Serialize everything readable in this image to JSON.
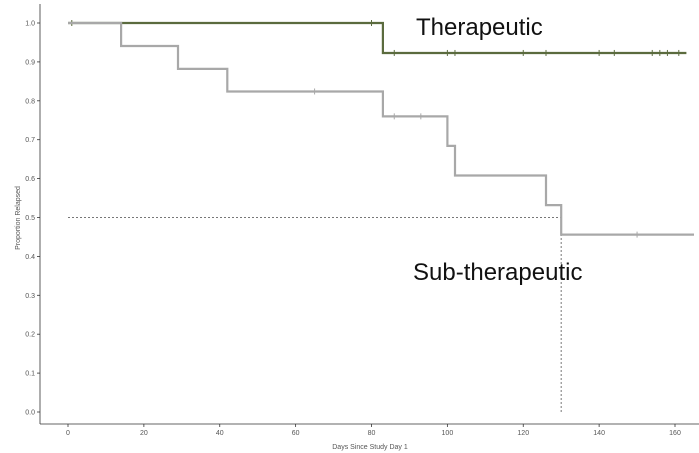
{
  "chart_data": {
    "type": "line",
    "subtype": "kaplan-meier step",
    "title": "",
    "xlabel": "Days Since Study Day 1",
    "ylabel": "Proportion Relapsed",
    "xlim": [
      -5,
      165
    ],
    "ylim": [
      -0.03,
      1.03
    ],
    "x_ticks": [
      0,
      20,
      40,
      60,
      80,
      100,
      120,
      140,
      160
    ],
    "y_ticks": [
      0.0,
      0.1,
      0.2,
      0.3,
      0.4,
      0.5,
      0.6,
      0.7,
      0.8,
      0.9,
      1.0
    ],
    "grid": false,
    "series": [
      {
        "name": "Therapeutic",
        "color": "#5b6b3e",
        "x": [
          0,
          83,
          83,
          163
        ],
        "y": [
          1.0,
          1.0,
          0.923,
          0.923
        ],
        "censor_x": [
          1,
          80,
          86,
          100,
          102,
          120,
          126,
          140,
          144,
          154,
          156,
          158,
          161
        ],
        "censor_y": [
          1.0,
          1.0,
          0.923,
          0.923,
          0.923,
          0.923,
          0.923,
          0.923,
          0.923,
          0.923,
          0.923,
          0.923,
          0.923
        ]
      },
      {
        "name": "Sub-therapeutic",
        "color": "#a8a8a8",
        "x": [
          0,
          14,
          14,
          29,
          29,
          42,
          42,
          83,
          83,
          100,
          100,
          102,
          102,
          126,
          126,
          130,
          130,
          165
        ],
        "y": [
          1.0,
          1.0,
          0.941,
          0.941,
          0.882,
          0.882,
          0.824,
          0.824,
          0.76,
          0.76,
          0.684,
          0.684,
          0.608,
          0.608,
          0.532,
          0.532,
          0.456,
          0.456
        ],
        "censor_x": [
          65,
          86,
          93,
          150
        ],
        "censor_y": [
          0.824,
          0.76,
          0.76,
          0.456
        ]
      }
    ],
    "reference_lines": [
      {
        "style": "dotted",
        "orientation": "horizontal",
        "y": 0.5,
        "x_from": 0,
        "x_to": 130
      },
      {
        "style": "dotted",
        "orientation": "vertical",
        "x": 130,
        "y_from": 0.0,
        "y_to": 0.5
      }
    ],
    "annotations": [
      {
        "text": "Therapeutic",
        "series": "Therapeutic"
      },
      {
        "text": "Sub-therapeutic",
        "series": "Sub-therapeutic"
      }
    ]
  }
}
